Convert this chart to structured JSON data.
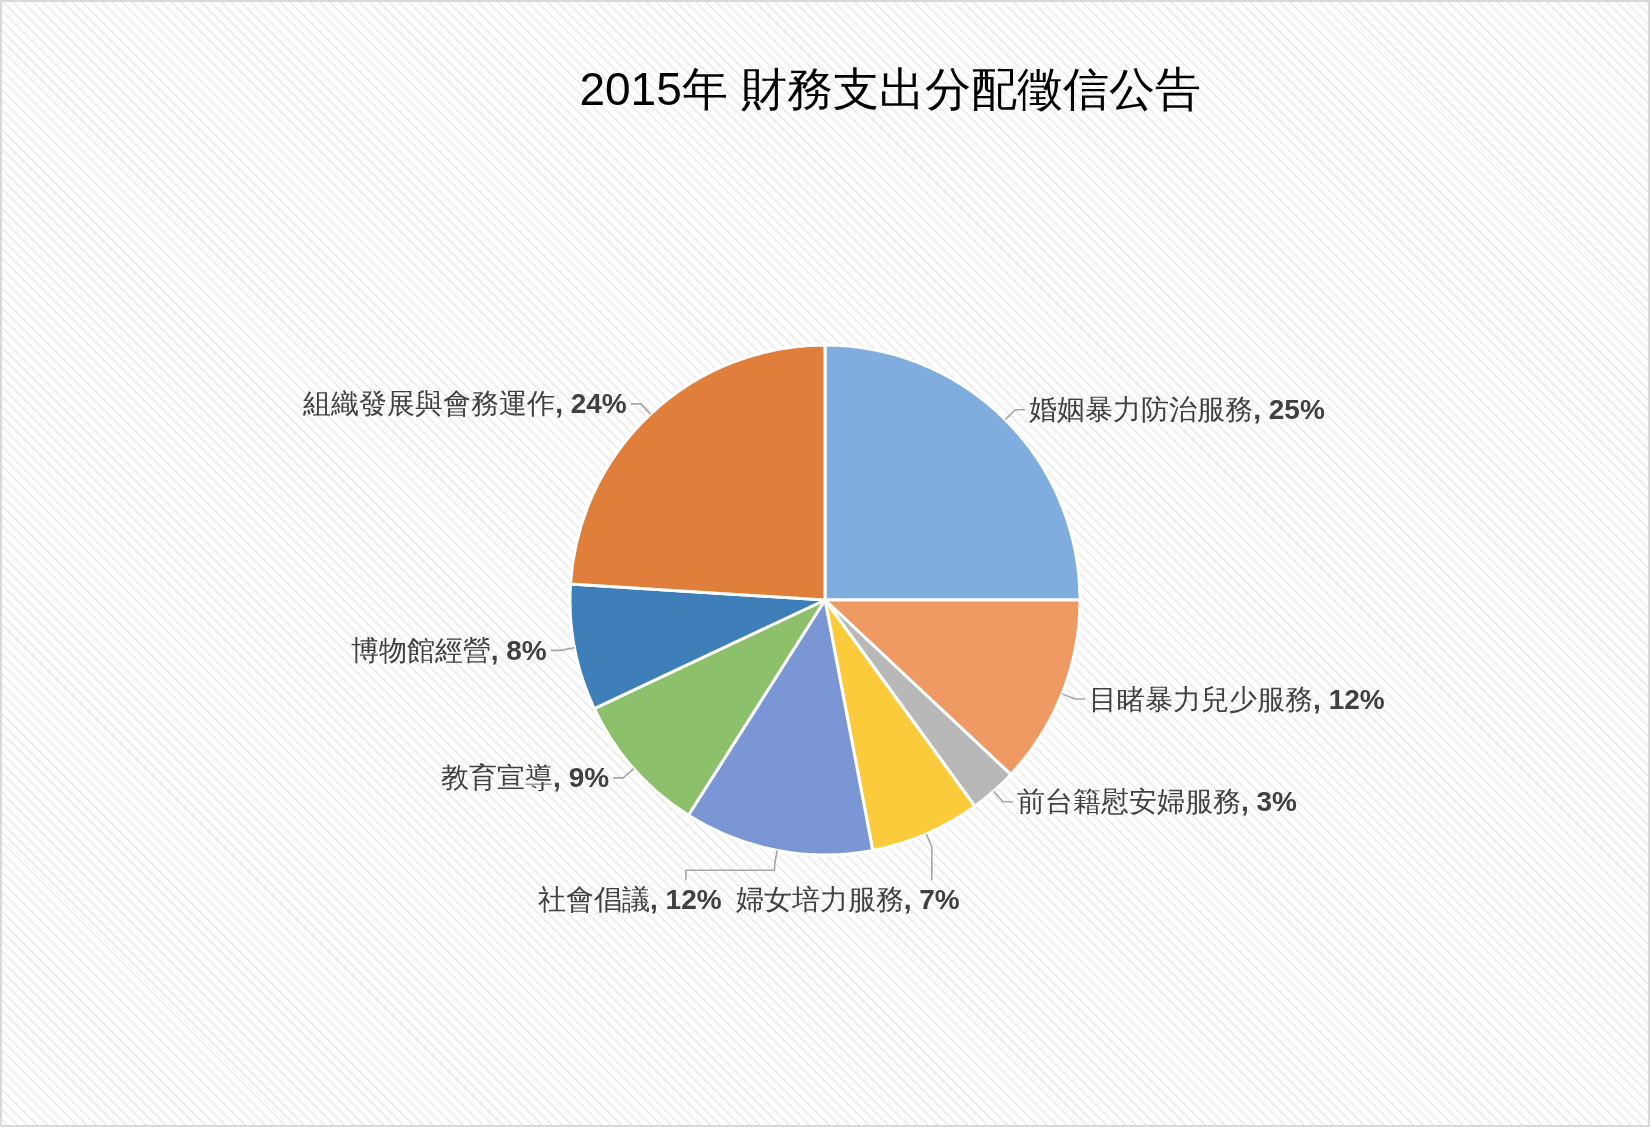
{
  "chart_data": {
    "type": "pie",
    "title": "2015年 財務支出分配徵信公告",
    "categories": [
      "婚姻暴力防治服務",
      "目睹暴力兒少服務",
      "前台籍慰安婦服務",
      "婦女培力服務",
      "社會倡議",
      "教育宣導",
      "博物館經營",
      "組織發展與會務運作"
    ],
    "values": [
      25,
      12,
      3,
      7,
      12,
      9,
      8,
      24
    ],
    "colors": [
      "#7fadde",
      "#ee9a62",
      "#b8b8b8",
      "#fccb3c",
      "#7a96d4",
      "#8cc06a",
      "#3f7fb9",
      "#e07f3c"
    ],
    "value_labels": [
      ", 25%",
      ", 12%",
      ", 3%",
      ", 7%",
      ", 12%",
      ", 9%",
      ", 8%",
      ", 24%"
    ]
  }
}
